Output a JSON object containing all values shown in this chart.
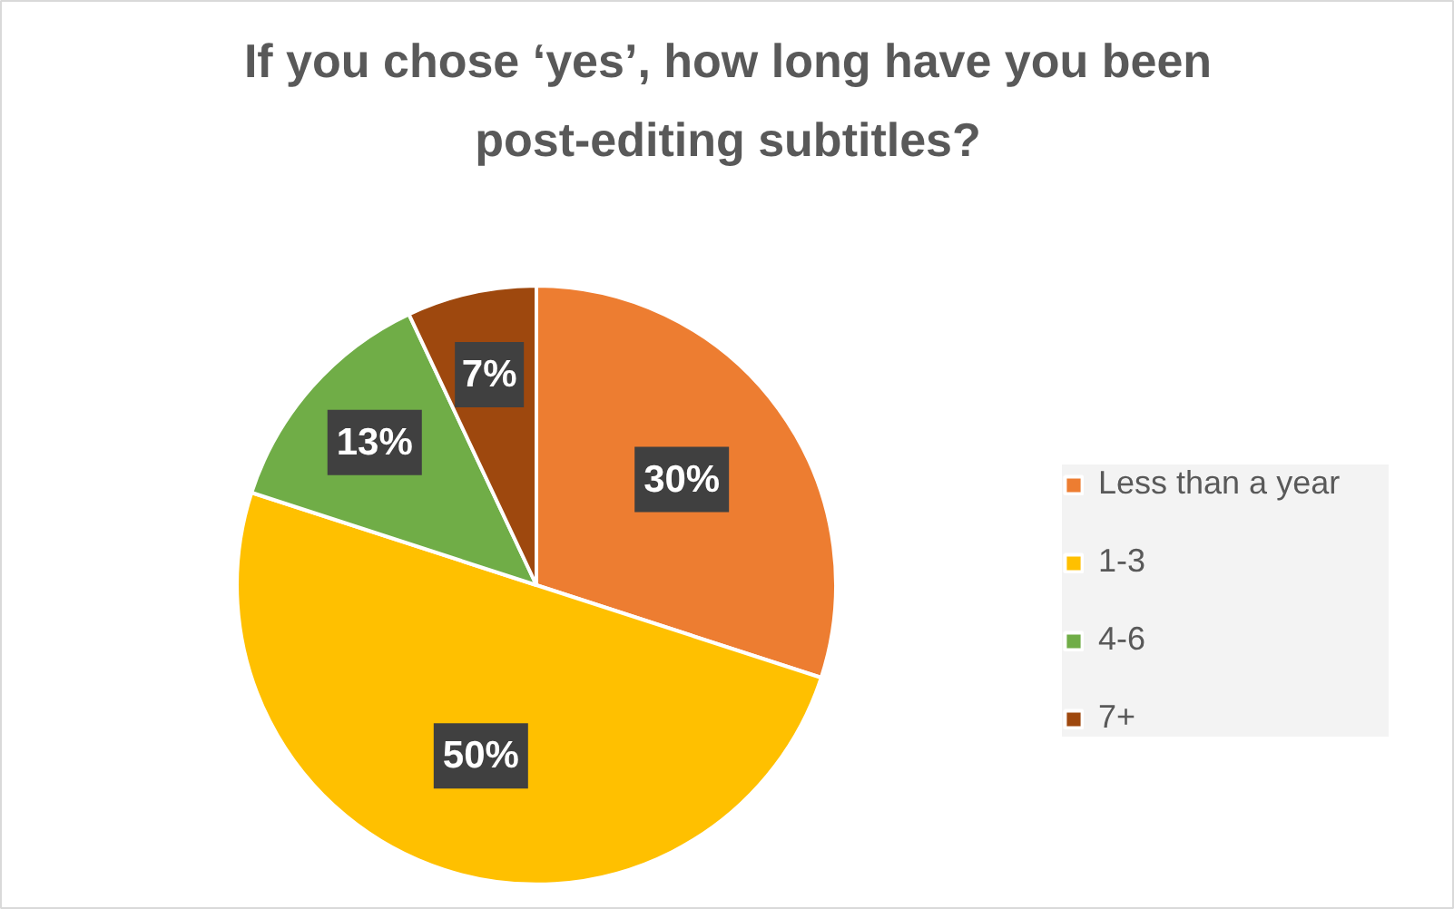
{
  "chart_data": {
    "type": "pie",
    "title": "If you chose ‘yes’, how long have you been\npost-editing subtitles?",
    "categories": [
      "Less than a year",
      "1-3",
      "4-6",
      "7+"
    ],
    "values": [
      30,
      50,
      13,
      7
    ],
    "colors": [
      "#ed7d31",
      "#ffc000",
      "#70ad47",
      "#9e480e"
    ],
    "value_labels": [
      "30%",
      "50%",
      "13%",
      "7%"
    ],
    "legend": "right"
  }
}
